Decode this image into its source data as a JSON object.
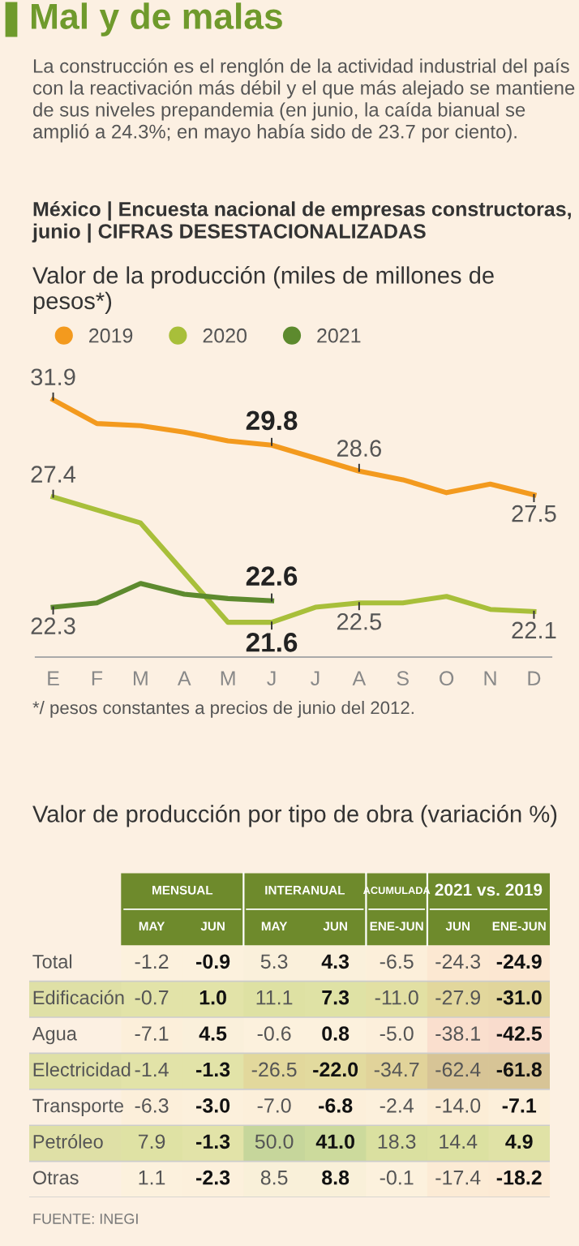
{
  "chart_data": [
    {
      "type": "line",
      "title": "Mal y de malas",
      "subtitle": "La construcción es el renglón de la actividad industrial del país con la reactivación más débil y el que más alejado se mantiene de sus niveles prepandemia (en junio, la caída bianual se amplió a 24.3%; en mayo había sido de 23.7 por ciento).",
      "annotations": [
        "México | Encuesta nacional de empresas constructoras, junio | CIFRAS DESESTACIONALIZADAS",
        "*/ pesos constantes a precios de junio del 2012."
      ],
      "ylabel": "Valor de la producción (miles de millones de pesos*)",
      "categories": [
        "E",
        "F",
        "M",
        "A",
        "M",
        "J",
        "J",
        "A",
        "S",
        "O",
        "N",
        "D"
      ],
      "legend": "top left",
      "marker": "none",
      "line_style": "solid",
      "grid": false,
      "series": [
        {
          "name": "2019",
          "color": "#f39a1e",
          "values": [
            31.9,
            30.8,
            30.7,
            30.4,
            30.0,
            29.8,
            29.2,
            28.6,
            28.2,
            27.6,
            28.0,
            27.5
          ],
          "value_labels": [
            "31.9",
            null,
            null,
            null,
            null,
            "29.8",
            null,
            "28.6",
            null,
            null,
            null,
            "27.5"
          ]
        },
        {
          "name": "2020",
          "color": "#a8bf3a",
          "values": [
            27.4,
            26.8,
            26.2,
            23.9,
            21.6,
            21.6,
            22.3,
            22.5,
            22.5,
            22.8,
            22.2,
            22.1
          ],
          "value_labels": [
            "27.4",
            null,
            null,
            null,
            null,
            "21.6",
            null,
            "22.5",
            null,
            null,
            null,
            "22.1"
          ]
        },
        {
          "name": "2021",
          "color": "#5d8a2e",
          "values": [
            22.3,
            22.5,
            23.4,
            22.9,
            22.7,
            22.6,
            null,
            null,
            null,
            null,
            null,
            null
          ],
          "value_labels": [
            "22.3",
            null,
            null,
            null,
            null,
            "22.6",
            null,
            null,
            null,
            null,
            null,
            null
          ]
        }
      ]
    },
    {
      "type": "heatmap",
      "title": "Valor de producción por tipo de obra (variación %)",
      "categories": [
        "MAY",
        "JUN",
        "MAY",
        "JUN",
        "ENE-JUN",
        "JUN",
        "ENE-JUN"
      ],
      "y_categories": [
        "Total",
        "Edificación",
        "Agua",
        "Electricidad",
        "Transporte",
        "Petróleo",
        "Otras"
      ],
      "annotations": [
        "MENSUAL",
        "INTERANUAL",
        "ACUMULADA",
        "2021 vs. 2019",
        "FUENTE: INEGI"
      ],
      "cell_labels": [
        [
          "-1.2",
          "-0.9",
          "5.3",
          "4.3",
          "-6.5",
          "-24.3",
          "-24.9"
        ],
        [
          "-0.7",
          "1.0",
          "11.1",
          "7.3",
          "-11.0",
          "-27.9",
          "-31.0"
        ],
        [
          "-7.1",
          "4.5",
          "-0.6",
          "0.8",
          "-5.0",
          "-38.1",
          "-42.5"
        ],
        [
          "-1.4",
          "-1.3",
          "-26.5",
          "-22.0",
          "-34.7",
          "-62.4",
          "-61.8"
        ],
        [
          "-6.3",
          "-3.0",
          "-7.0",
          "-6.8",
          "-2.4",
          "-14.0",
          "-7.1"
        ],
        [
          "7.9",
          "-1.3",
          "50.0",
          "41.0",
          "18.3",
          "14.4",
          "4.9"
        ],
        [
          "1.1",
          "-2.3",
          "8.5",
          "8.8",
          "-0.1",
          "-17.4",
          "-18.2"
        ]
      ],
      "cells": [
        [
          -1.2,
          -0.9,
          5.3,
          4.3,
          -6.5,
          -24.3,
          -24.9
        ],
        [
          -0.7,
          1.0,
          11.1,
          7.3,
          -11.0,
          -27.9,
          -31.0
        ],
        [
          -7.1,
          4.5,
          -0.6,
          0.8,
          -5.0,
          -38.1,
          -42.5
        ],
        [
          -1.4,
          -1.3,
          -26.5,
          -22.0,
          -34.7,
          -62.4,
          -61.8
        ],
        [
          -6.3,
          -3.0,
          -7.0,
          -6.8,
          -2.4,
          -14.0,
          -7.1
        ],
        [
          7.9,
          -1.3,
          50.0,
          41.0,
          18.3,
          14.4,
          4.9
        ],
        [
          1.1,
          -2.3,
          8.5,
          8.8,
          -0.1,
          -17.4,
          -18.2
        ]
      ]
    }
  ]
}
